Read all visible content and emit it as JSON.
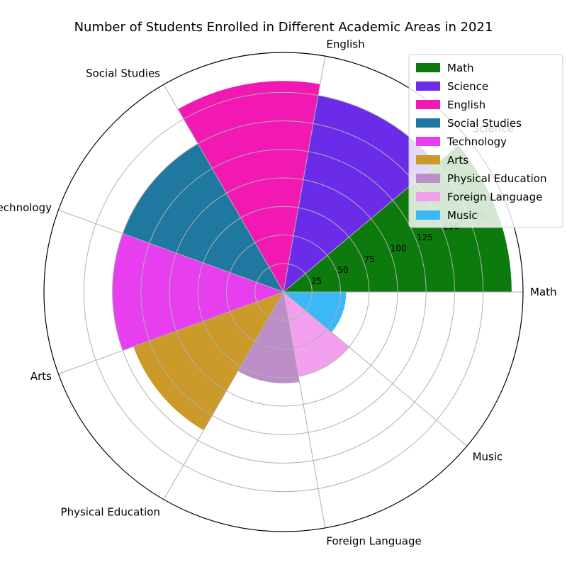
{
  "chart_data": {
    "type": "polar-bar",
    "title": "Number of Students Enrolled in Different Academic Areas in 2021",
    "categories": [
      "Math",
      "Science",
      "English",
      "Social Studies",
      "Technology",
      "Arts",
      "Physical Education",
      "Foreign Language",
      "Music"
    ],
    "values": [
      200,
      175,
      185,
      150,
      150,
      140,
      80,
      75,
      55
    ],
    "colors": [
      "#0d7a0d",
      "#6a2ce8",
      "#f218b4",
      "#1f78a0",
      "#e73ff0",
      "#cc9a2a",
      "#bb8ec8",
      "#f3a0ee",
      "#3ab8f8"
    ],
    "radial_ticks": [
      25,
      50,
      75,
      100,
      125,
      150,
      175
    ],
    "rmax": 210,
    "grid": true,
    "legend": "top-right"
  }
}
